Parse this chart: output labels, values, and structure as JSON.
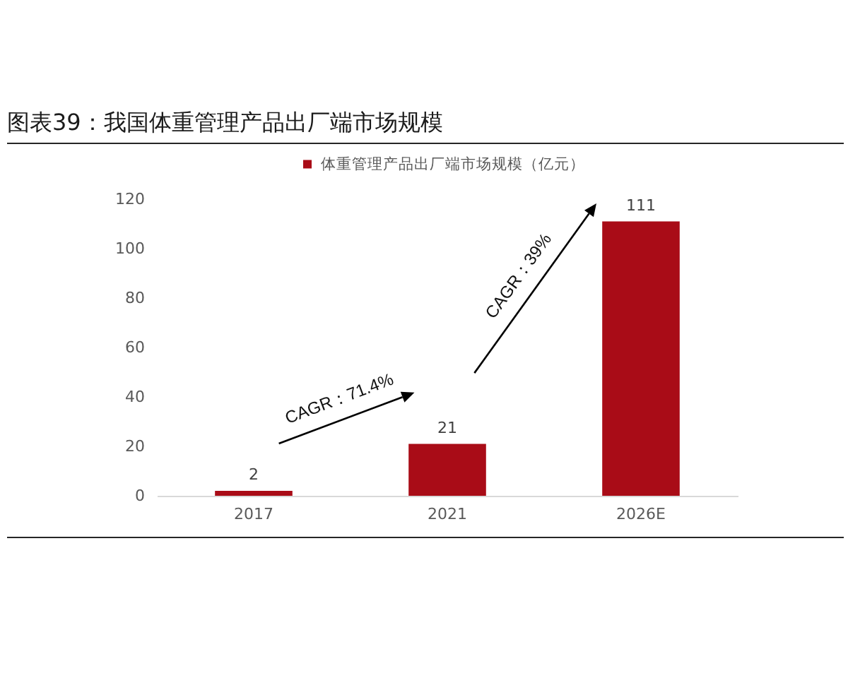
{
  "chart_data": {
    "type": "bar",
    "title": "图表39：我国体重管理产品出厂端市场规模",
    "categories": [
      "2017",
      "2021",
      "2026E"
    ],
    "series": [
      {
        "name": "体重管理产品出厂端市场规模（亿元）",
        "color": "#a90c17",
        "values": [
          2,
          21,
          111
        ]
      }
    ],
    "ylim": [
      0,
      120
    ],
    "yticks": [
      0,
      20,
      40,
      60,
      80,
      100,
      120
    ],
    "grid": false,
    "legend": "top",
    "data_labels": true,
    "annotations": [
      "CAGR：71.4%",
      "CAGR：39%"
    ]
  }
}
